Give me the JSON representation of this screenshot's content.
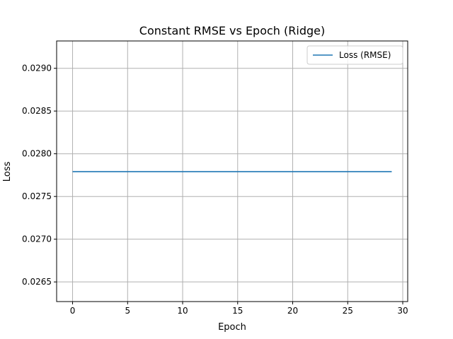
{
  "chart_data": {
    "type": "line",
    "title": "Constant RMSE vs Epoch (Ridge)",
    "xlabel": "Epoch",
    "ylabel": "Loss",
    "xlim": [
      -1.45,
      30.45
    ],
    "ylim": [
      0.02627,
      0.02932
    ],
    "xticks": [
      0,
      5,
      10,
      15,
      20,
      25,
      30
    ],
    "xtick_labels": [
      "0",
      "5",
      "10",
      "15",
      "20",
      "25",
      "30"
    ],
    "yticks": [
      0.0265,
      0.027,
      0.0275,
      0.028,
      0.0285,
      0.029
    ],
    "ytick_labels": [
      "0.0265",
      "0.0270",
      "0.0275",
      "0.0280",
      "0.0285",
      "0.0290"
    ],
    "grid": true,
    "legend_position": "top-right",
    "series": [
      {
        "name": "Loss (RMSE)",
        "color": "#1f77b4",
        "x": [
          0,
          1,
          2,
          3,
          4,
          5,
          6,
          7,
          8,
          9,
          10,
          11,
          12,
          13,
          14,
          15,
          16,
          17,
          18,
          19,
          20,
          21,
          22,
          23,
          24,
          25,
          26,
          27,
          28,
          29
        ],
        "y": [
          0.02779,
          0.02779,
          0.02779,
          0.02779,
          0.02779,
          0.02779,
          0.02779,
          0.02779,
          0.02779,
          0.02779,
          0.02779,
          0.02779,
          0.02779,
          0.02779,
          0.02779,
          0.02779,
          0.02779,
          0.02779,
          0.02779,
          0.02779,
          0.02779,
          0.02779,
          0.02779,
          0.02779,
          0.02779,
          0.02779,
          0.02779,
          0.02779,
          0.02779,
          0.02779
        ]
      }
    ]
  }
}
